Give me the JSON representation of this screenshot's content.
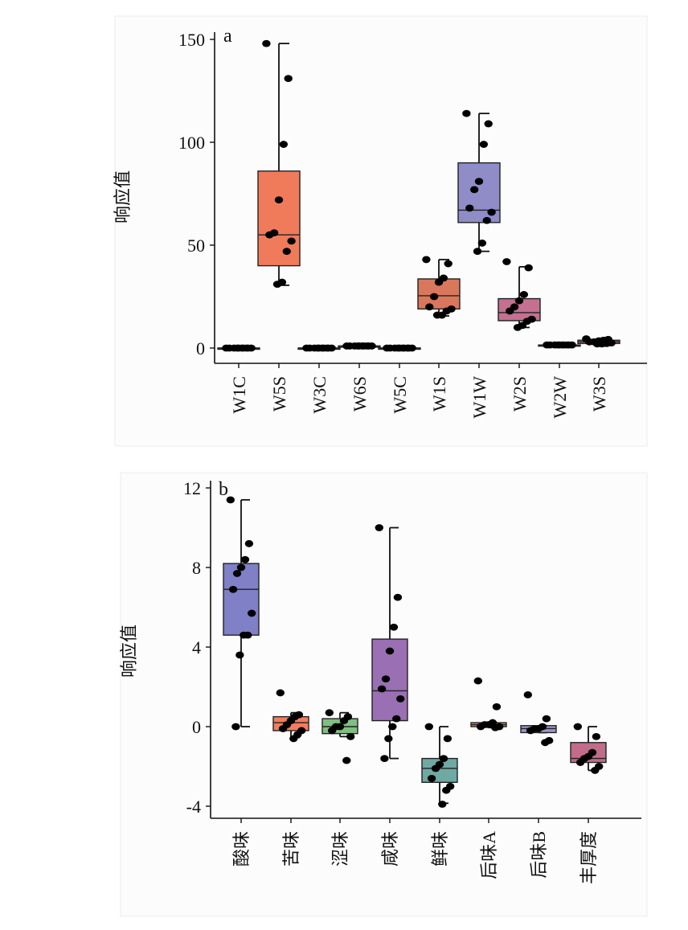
{
  "chart_data": [
    {
      "type": "box",
      "panel_label": "a",
      "ylabel": "响应值",
      "xlabel": "",
      "ylim": [
        -7,
        155
      ],
      "yticks": [
        0,
        50,
        100,
        150
      ],
      "grid": false,
      "categories": [
        "W1C",
        "W5S",
        "W3C",
        "W6S",
        "W5C",
        "W1S",
        "W1W",
        "W2S",
        "W2W",
        "W3S"
      ],
      "boxes": [
        {
          "whisker_low": 0,
          "q1": 0,
          "median": 0,
          "q3": 0,
          "whisker_high": 0,
          "points": [
            0,
            0,
            0,
            0,
            0,
            0,
            0,
            0,
            0,
            0
          ],
          "color": "#e07a60"
        },
        {
          "whisker_low": 30.5,
          "q1": 40,
          "median": 55,
          "q3": 86,
          "whisker_high": 148,
          "points": [
            148,
            131,
            99,
            72,
            56,
            55,
            52,
            47,
            32,
            31
          ],
          "color": "#f07b5a"
        },
        {
          "whisker_low": 0,
          "q1": 0,
          "median": 0,
          "q3": 0,
          "whisker_high": 0,
          "points": [
            0,
            0,
            0,
            0,
            0,
            0,
            0,
            0,
            0,
            0
          ],
          "color": "#e07a60"
        },
        {
          "whisker_low": 1,
          "q1": 1,
          "median": 1,
          "q3": 1,
          "whisker_high": 1,
          "points": [
            1,
            1,
            1,
            1,
            1,
            1,
            1,
            1,
            1,
            1
          ],
          "color": "#e07a60"
        },
        {
          "whisker_low": 0,
          "q1": 0,
          "median": 0,
          "q3": 0,
          "whisker_high": 0,
          "points": [
            0,
            0,
            0,
            0,
            0,
            0,
            0,
            0,
            0,
            0
          ],
          "color": "#e07a60"
        },
        {
          "whisker_low": 15.6,
          "q1": 19,
          "median": 25.4,
          "q3": 33.6,
          "whisker_high": 43,
          "points": [
            43,
            41,
            34,
            32,
            25,
            20,
            19,
            18,
            16,
            16
          ],
          "color": "#d9775c"
        },
        {
          "whisker_low": 47,
          "q1": 61,
          "median": 67,
          "q3": 90,
          "whisker_high": 114,
          "points": [
            114,
            109,
            99,
            81,
            77,
            68,
            66,
            62,
            51,
            47
          ],
          "color": "#8f8cc8"
        },
        {
          "whisker_low": 10,
          "q1": 13.3,
          "median": 17.2,
          "q3": 24,
          "whisker_high": 39.5,
          "points": [
            42,
            39,
            26,
            23,
            20,
            18,
            14,
            13,
            11,
            10
          ],
          "color": "#c47090"
        },
        {
          "whisker_low": 1.5,
          "q1": 1.5,
          "median": 1.5,
          "q3": 1.5,
          "whisker_high": 1.5,
          "points": [
            1.5,
            1.5,
            1.5,
            1.5,
            1.5,
            1.5,
            1.5,
            1.5,
            1.5,
            1.5
          ],
          "color": "#9b96cc"
        },
        {
          "whisker_low": 2,
          "q1": 2.2,
          "median": 3,
          "q3": 3.8,
          "whisker_high": 4.5,
          "points": [
            4.5,
            4.2,
            3.8,
            3.5,
            3,
            3,
            2.5,
            2.2,
            2,
            2
          ],
          "color": "#c06c8a"
        }
      ]
    },
    {
      "type": "box",
      "panel_label": "b",
      "ylabel": "响应值",
      "xlabel": "",
      "ylim": [
        -4.6,
        12.2
      ],
      "yticks": [
        -4,
        0,
        4,
        8,
        12
      ],
      "grid": false,
      "categories": [
        "酸味",
        "苦味",
        "涩味",
        "咸味",
        "鲜味",
        "后味A",
        "后味B",
        "丰厚度"
      ],
      "boxes": [
        {
          "whisker_low": 0,
          "q1": 4.6,
          "median": 6.9,
          "q3": 8.2,
          "whisker_high": 11.4,
          "points": [
            11.4,
            9.2,
            8.4,
            8.0,
            7.7,
            6.9,
            5.7,
            4.6,
            4.6,
            3.6,
            0
          ],
          "color": "#7f80c6"
        },
        {
          "whisker_low": -0.55,
          "q1": -0.2,
          "median": 0.2,
          "q3": 0.5,
          "whisker_high": 0.7,
          "points": [
            1.7,
            0.6,
            0.5,
            0.3,
            0.1,
            -0.1,
            -0.2,
            -0.4,
            -0.6
          ],
          "color": "#f07e5e"
        },
        {
          "whisker_low": -0.5,
          "q1": -0.35,
          "median": 0,
          "q3": 0.4,
          "whisker_high": 0.7,
          "points": [
            0.7,
            0.5,
            0.3,
            0,
            0,
            -0.2,
            -0.5,
            -1.7
          ],
          "color": "#80be82"
        },
        {
          "whisker_low": -1.6,
          "q1": 0.3,
          "median": 1.8,
          "q3": 4.4,
          "whisker_high": 10,
          "points": [
            10,
            6.5,
            5.0,
            3.8,
            2.4,
            1.9,
            1.4,
            0.4,
            0,
            -0.6,
            -1.6
          ],
          "color": "#9b6fb4"
        },
        {
          "whisker_low": -3.85,
          "q1": -2.8,
          "median": -2.1,
          "q3": -1.6,
          "whisker_high": 0,
          "points": [
            0,
            -0.6,
            -1.6,
            -1.9,
            -2.1,
            -2.6,
            -3.0,
            -3.2,
            -3.9
          ],
          "color": "#6fa9a4"
        },
        {
          "whisker_low": -0.05,
          "q1": 0,
          "median": 0.1,
          "q3": 0.2,
          "whisker_high": 0.2,
          "points": [
            2.3,
            1.0,
            0.2,
            0.1,
            0.1,
            0,
            0,
            -0.05
          ],
          "color": "#d98060"
        },
        {
          "whisker_low": -0.3,
          "q1": -0.3,
          "median": -0.1,
          "q3": 0.05,
          "whisker_high": 0.05,
          "points": [
            1.6,
            0.4,
            0,
            -0.1,
            -0.1,
            -0.2,
            -0.7,
            -0.8
          ],
          "color": "#9b96cc"
        },
        {
          "whisker_low": -2.2,
          "q1": -1.8,
          "median": -1.6,
          "q3": -0.8,
          "whisker_high": 0,
          "points": [
            0,
            -0.5,
            -1.3,
            -1.5,
            -1.6,
            -1.8,
            -2.0,
            -2.2
          ],
          "color": "#c06c8a"
        }
      ]
    }
  ]
}
